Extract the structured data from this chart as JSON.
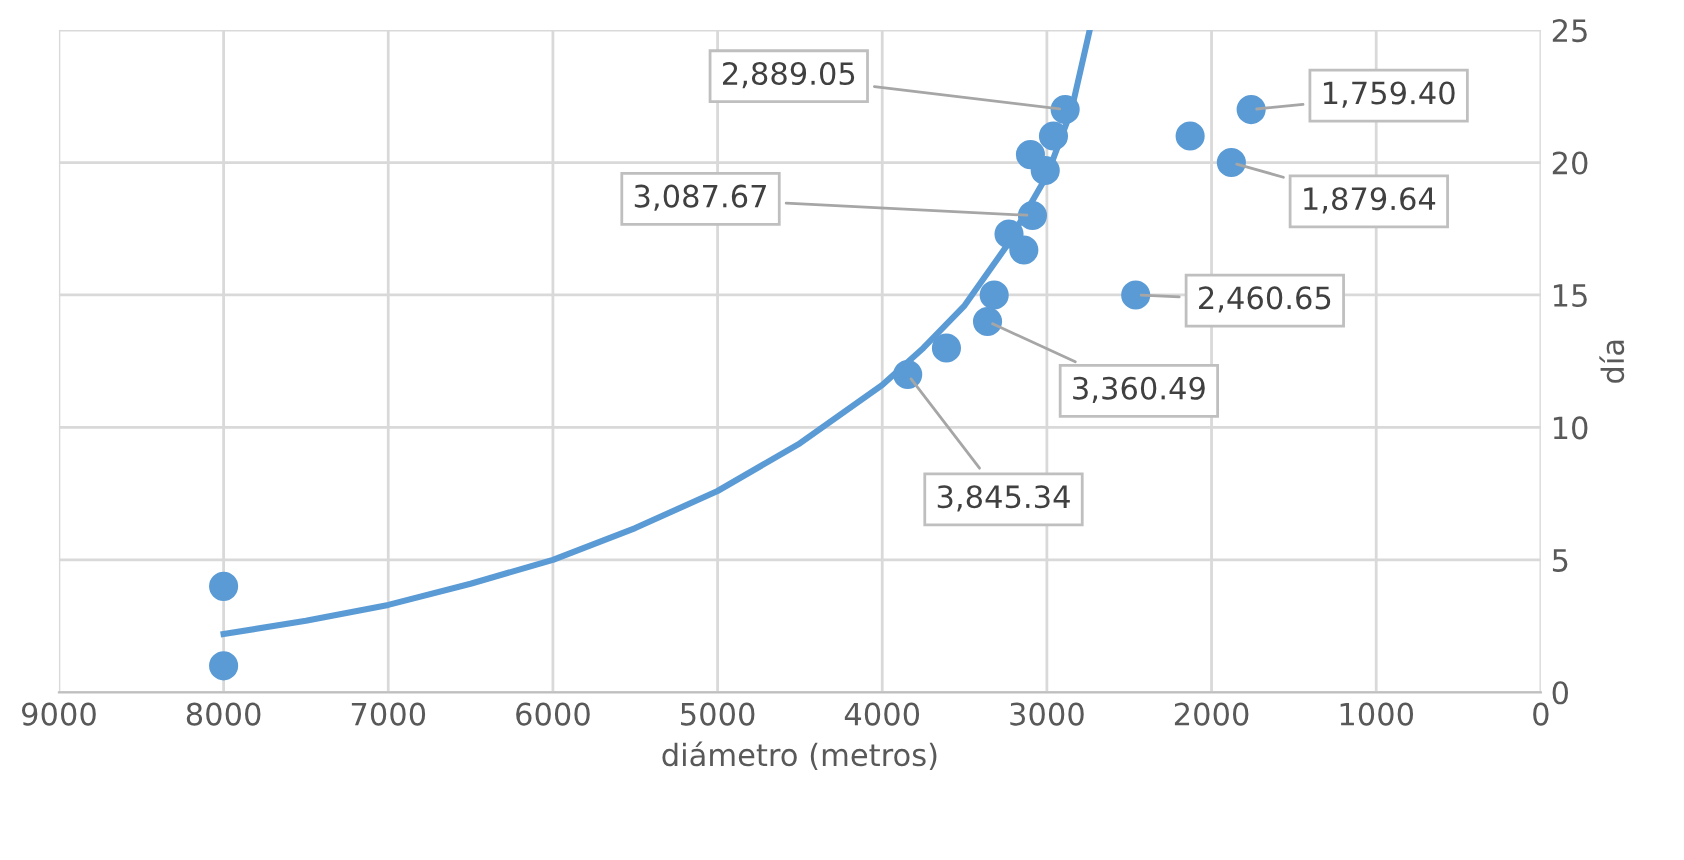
{
  "chart_data": {
    "type": "scatter",
    "xlabel": "diámetro (metros)",
    "ylabel": "día",
    "xlim": [
      9000,
      0
    ],
    "xticks": [
      9000,
      8000,
      7000,
      6000,
      5000,
      4000,
      3000,
      2000,
      1000,
      0
    ],
    "ylim": [
      0,
      25
    ],
    "yticks": [
      0,
      5,
      10,
      15,
      20,
      25
    ],
    "grid": true,
    "series": [
      {
        "color": "#5b9bd5",
        "marker": "circle",
        "x": [
          8000,
          8000,
          1759.4,
          1879.64,
          2460.65,
          2889.05,
          2130,
          2960,
          3010,
          3100,
          3087.67,
          3140,
          3230,
          3320,
          3360.49,
          3610,
          3845.34
        ],
        "values": [
          4,
          1,
          22,
          20,
          15,
          22,
          21,
          21,
          19.7,
          20.3,
          18,
          16.7,
          17.3,
          15,
          14,
          13,
          12
        ]
      },
      {
        "type": "line",
        "color": "#5b9bd5",
        "marker": "none",
        "x": [
          8000,
          7500,
          7000,
          6500,
          6000,
          5500,
          5000,
          4500,
          4000,
          3750,
          3500,
          3250,
          3000,
          2850,
          2740
        ],
        "values": [
          2.2,
          2.7,
          3.3,
          4.1,
          5.0,
          6.2,
          7.6,
          9.4,
          11.6,
          13.0,
          14.6,
          16.8,
          19.5,
          22,
          25
        ]
      }
    ],
    "annotations": [
      {
        "text": "1,759.40",
        "x": 1759.4,
        "y": 22
      },
      {
        "text": "1,879.64",
        "x": 1879.64,
        "y": 20
      },
      {
        "text": "2,460.65",
        "x": 2460.65,
        "y": 15
      },
      {
        "text": "2,889.05",
        "x": 2889.05,
        "y": 22
      },
      {
        "text": "3,087.67",
        "x": 3087.67,
        "y": 18
      },
      {
        "text": "3,360.49",
        "x": 3360.49,
        "y": 14
      },
      {
        "text": "3,845.34",
        "x": 3845.34,
        "y": 12
      }
    ]
  }
}
